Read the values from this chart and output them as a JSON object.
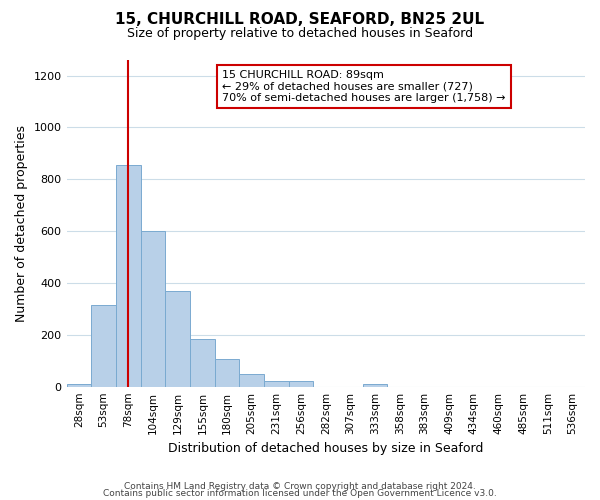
{
  "title": "15, CHURCHILL ROAD, SEAFORD, BN25 2UL",
  "subtitle": "Size of property relative to detached houses in Seaford",
  "xlabel": "Distribution of detached houses by size in Seaford",
  "ylabel": "Number of detached properties",
  "bar_values": [
    10,
    315,
    855,
    600,
    370,
    185,
    105,
    47,
    22,
    20,
    0,
    0,
    10,
    0,
    0,
    0,
    0,
    0,
    0,
    0,
    0
  ],
  "ylim": [
    0,
    1260
  ],
  "yticks": [
    0,
    200,
    400,
    600,
    800,
    1000,
    1200
  ],
  "bar_color": "#b8d0e8",
  "bar_edge_color": "#7aaad0",
  "vline_x": 2,
  "vline_color": "#cc0000",
  "annotation_title": "15 CHURCHILL ROAD: 89sqm",
  "annotation_line1": "← 29% of detached houses are smaller (727)",
  "annotation_line2": "70% of semi-detached houses are larger (1,758) →",
  "annotation_box_color": "#ffffff",
  "annotation_box_edge": "#cc0000",
  "footer1": "Contains HM Land Registry data © Crown copyright and database right 2024.",
  "footer2": "Contains public sector information licensed under the Open Government Licence v3.0.",
  "background_color": "#ffffff",
  "all_labels": [
    "28sqm",
    "53sqm",
    "78sqm",
    "104sqm",
    "129sqm",
    "155sqm",
    "180sqm",
    "205sqm",
    "231sqm",
    "256sqm",
    "282sqm",
    "307sqm",
    "333sqm",
    "358sqm",
    "383sqm",
    "409sqm",
    "434sqm",
    "460sqm",
    "485sqm",
    "511sqm",
    "536sqm"
  ]
}
